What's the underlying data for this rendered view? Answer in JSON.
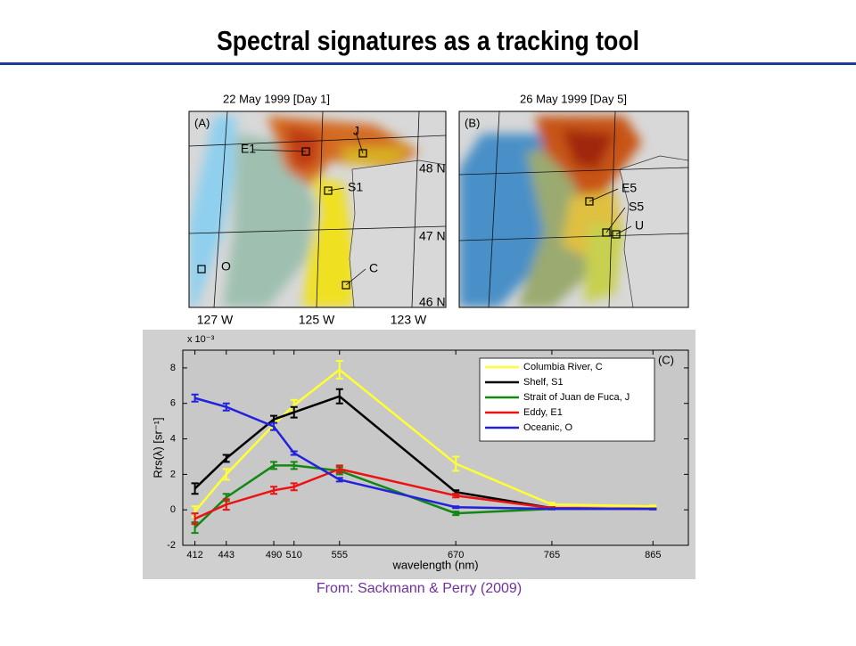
{
  "title": "Spectral signatures as a tracking tool",
  "maps": [
    {
      "title": "22 May 1999 [Day 1]",
      "panel": "(A)",
      "sites": [
        "E1",
        "J",
        "S1",
        "O",
        "C"
      ]
    },
    {
      "title": "26 May 1999 [Day 5]",
      "panel": "(B)",
      "sites": [
        "E5",
        "S5",
        "U"
      ]
    }
  ],
  "latitude_labels": [
    "48 N",
    "47 N",
    "46 N"
  ],
  "longitude_labels": [
    "127 W",
    "125 W",
    "123 W"
  ],
  "chart_data": {
    "type": "line",
    "multiplier": "x 10⁻³",
    "x_label": "wavelength (nm)",
    "y_label": "Rrs(λ) [sr⁻¹]",
    "annotation": "(C)",
    "x": [
      412,
      443,
      490,
      510,
      555,
      670,
      765,
      865
    ],
    "xlim": [
      400,
      900
    ],
    "xticks": [
      412,
      443,
      490,
      510,
      555,
      670,
      765,
      865
    ],
    "ylim": [
      -2,
      9
    ],
    "yticks": [
      -2,
      0,
      2,
      4,
      6,
      8
    ],
    "legend": "upper right",
    "series": [
      {
        "name": "Columbia River, C",
        "color": "#ffff33",
        "values": [
          -0.1,
          2.0,
          4.8,
          5.9,
          7.9,
          2.6,
          0.3,
          0.2
        ],
        "errors": [
          0.3,
          0.3,
          0.2,
          0.3,
          0.5,
          0.4,
          0.1,
          0.05
        ]
      },
      {
        "name": "Shelf, S1",
        "color": "#000000",
        "values": [
          1.2,
          2.9,
          5.1,
          5.5,
          6.4,
          1.0,
          0.1,
          0.05
        ],
        "errors": [
          0.3,
          0.2,
          0.2,
          0.3,
          0.4,
          0.1,
          0.05,
          0.02
        ]
      },
      {
        "name": "Strait of Juan de Fuca, J",
        "color": "#118811",
        "values": [
          -1.0,
          0.7,
          2.5,
          2.5,
          2.2,
          -0.2,
          0.05,
          0.05
        ],
        "errors": [
          0.3,
          0.2,
          0.2,
          0.2,
          0.2,
          0.1,
          0.03,
          0.02
        ]
      },
      {
        "name": "Eddy, E1",
        "color": "#ee1111",
        "values": [
          -0.5,
          0.3,
          1.1,
          1.3,
          2.3,
          0.8,
          0.1,
          0.05
        ],
        "errors": [
          0.3,
          0.3,
          0.2,
          0.2,
          0.2,
          0.1,
          0.03,
          0.02
        ]
      },
      {
        "name": "Oceanic, O",
        "color": "#2222dd",
        "values": [
          6.3,
          5.8,
          4.7,
          3.2,
          1.7,
          0.15,
          0.05,
          0.05
        ],
        "errors": [
          0.2,
          0.2,
          0.2,
          0.1,
          0.1,
          0.05,
          0.02,
          0.02
        ]
      }
    ]
  },
  "citation": "From: Sackmann & Perry (2009)"
}
